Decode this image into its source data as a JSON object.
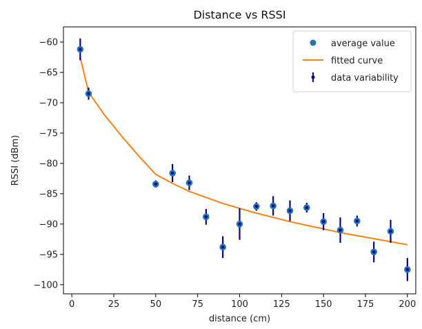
{
  "chart_data": {
    "type": "scatter",
    "title": "Distance vs RSSI",
    "xlabel": "distance (cm)",
    "ylabel": "RSSI (dBm)",
    "xlim": [
      -5,
      205
    ],
    "ylim": [
      -101.5,
      -57.5
    ],
    "xticks": [
      0,
      25,
      50,
      75,
      100,
      125,
      150,
      175,
      200
    ],
    "yticks": [
      -60,
      -65,
      -70,
      -75,
      -80,
      -85,
      -90,
      -95,
      -100
    ],
    "grid": false,
    "legend_position": "top-right",
    "legend": [
      "average value",
      "fitted curve",
      "data variability"
    ],
    "series": [
      {
        "name": "average value",
        "kind": "scatter",
        "color": "#1f77b4",
        "x": [
          5,
          10,
          50,
          60,
          70,
          80,
          90,
          100,
          110,
          120,
          130,
          140,
          150,
          160,
          170,
          180,
          190,
          200
        ],
        "y": [
          -61.2,
          -68.5,
          -83.4,
          -81.6,
          -83.2,
          -88.8,
          -93.8,
          -90.0,
          -87.1,
          -87.0,
          -87.8,
          -87.3,
          -89.6,
          -91.0,
          -89.5,
          -94.6,
          -91.2,
          -97.5
        ]
      },
      {
        "name": "fitted curve",
        "kind": "line",
        "color": "#ff7f0e",
        "x": [
          5,
          10,
          20,
          30,
          40,
          50,
          60,
          70,
          80,
          90,
          100,
          110,
          120,
          130,
          140,
          150,
          160,
          170,
          180,
          190,
          200
        ],
        "y": [
          -62.5,
          -68.3,
          -72.2,
          -75.6,
          -78.8,
          -81.8,
          -83.3,
          -84.6,
          -85.6,
          -86.6,
          -87.4,
          -88.2,
          -88.9,
          -89.6,
          -90.2,
          -90.8,
          -91.4,
          -91.9,
          -92.4,
          -92.9,
          -93.4
        ]
      },
      {
        "name": "data variability",
        "kind": "errorbar",
        "color": "#00008b",
        "x": [
          5,
          10,
          50,
          60,
          70,
          80,
          90,
          100,
          110,
          120,
          130,
          140,
          150,
          160,
          170,
          180,
          190,
          200
        ],
        "y": [
          -61.2,
          -68.5,
          -83.4,
          -81.6,
          -83.2,
          -88.8,
          -93.8,
          -90.0,
          -87.1,
          -87.0,
          -87.8,
          -87.3,
          -89.6,
          -91.0,
          -89.5,
          -94.6,
          -91.2,
          -97.5
        ],
        "yerr": [
          1.8,
          1.0,
          0.6,
          1.5,
          1.2,
          1.3,
          1.8,
          2.6,
          0.7,
          1.6,
          1.7,
          0.8,
          1.4,
          2.1,
          0.9,
          1.7,
          1.9,
          1.9
        ]
      }
    ]
  }
}
